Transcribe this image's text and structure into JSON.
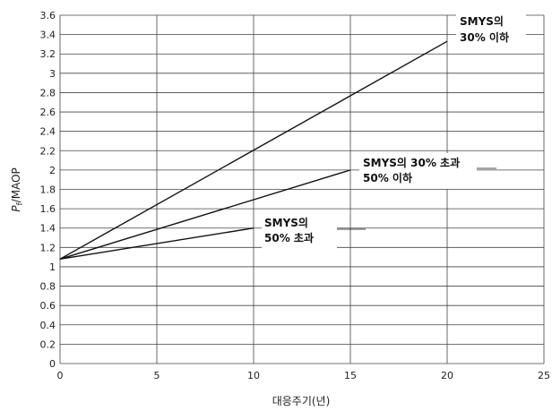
{
  "chart_data": {
    "type": "line",
    "xlabel": "대응주기(년)",
    "ylabel": "P",
    "ylabel_sub": "f",
    "ylabel_rest": "/MAOP",
    "xlim": [
      0,
      25
    ],
    "ylim": [
      0,
      3.6
    ],
    "x_ticks": [
      0,
      5,
      10,
      15,
      20,
      25
    ],
    "y_ticks": [
      0,
      0.2,
      0.4,
      0.6,
      0.8,
      1,
      1.2,
      1.4,
      1.6,
      1.8,
      2,
      2.2,
      2.4,
      2.6,
      2.8,
      3,
      3.2,
      3.4,
      3.6
    ],
    "grid": true,
    "series": [
      {
        "x": [
          0,
          20
        ],
        "y": [
          1.08,
          3.33
        ],
        "annotation": [
          "SMYS의",
          "30% 이하"
        ]
      },
      {
        "x": [
          0,
          15
        ],
        "y": [
          1.08,
          2.0
        ],
        "annotation": [
          "SMYS의 30% 초과",
          "50% 이하"
        ]
      },
      {
        "x": [
          0,
          10
        ],
        "y": [
          1.08,
          1.4
        ],
        "annotation": [
          "SMYS의",
          "50% 초과"
        ]
      }
    ]
  }
}
